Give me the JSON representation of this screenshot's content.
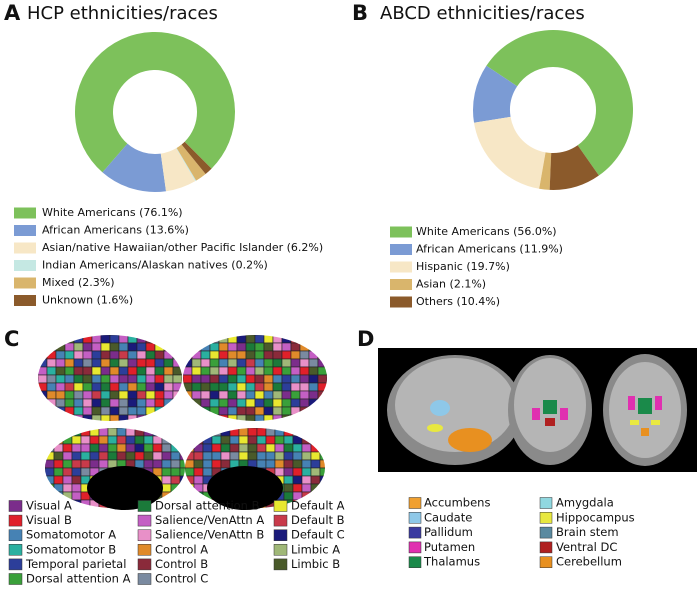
{
  "chart_data": [
    {
      "type": "pie",
      "panel": "A",
      "title": "HCP ethnicities/races",
      "categories": [
        "White Americans",
        "African Americans",
        "Asian/native Hawaiian/other Pacific Islander",
        "Indian Americans/Alaskan natives",
        "Mixed",
        "Unknown"
      ],
      "values": [
        76.1,
        13.6,
        6.2,
        0.2,
        2.3,
        1.6
      ],
      "value_labels": [
        "(76.1%)",
        "(13.6%)",
        "(6.2%)",
        "(0.2%)",
        "(2.3%)",
        "(1.6%)"
      ],
      "colors": [
        "#7dc15b",
        "#7b9bd4",
        "#f7e7c6",
        "#c5e8e3",
        "#d9b56c",
        "#8b5a2b"
      ]
    },
    {
      "type": "pie",
      "panel": "B",
      "title": "ABCD ethnicities/races",
      "categories": [
        "White Americans",
        "African Americans",
        "Hispanic",
        "Asian",
        "Others"
      ],
      "values": [
        56.0,
        11.9,
        19.7,
        2.1,
        10.4
      ],
      "value_labels": [
        "(56.0%)",
        "(11.9%)",
        "(19.7%)",
        "(2.1%)",
        "(10.4%)"
      ],
      "colors": [
        "#7dc15b",
        "#7b9bd4",
        "#f7e7c6",
        "#d9b56c",
        "#8b5a2b"
      ]
    }
  ],
  "panel_c": {
    "label": "C",
    "legend": [
      {
        "name": "Visual A",
        "color": "#7b2d8b"
      },
      {
        "name": "Visual B",
        "color": "#e0202a"
      },
      {
        "name": "Somatomotor A",
        "color": "#4682b4"
      },
      {
        "name": "Somatomotor B",
        "color": "#2ab0a0"
      },
      {
        "name": "Temporal parietal",
        "color": "#2c3e9a"
      },
      {
        "name": "Dorsal attention A",
        "color": "#3aa03a"
      },
      {
        "name": "Dorsal attention B",
        "color": "#1b7a3a"
      },
      {
        "name": "Salience/VenAttn A",
        "color": "#c45fc4"
      },
      {
        "name": "Salience/VenAttn B",
        "color": "#e890c8"
      },
      {
        "name": "Control A",
        "color": "#e08a2a"
      },
      {
        "name": "Control B",
        "color": "#8a2a3a"
      },
      {
        "name": "Control C",
        "color": "#7a8aa0"
      },
      {
        "name": "Default A",
        "color": "#e8e830"
      },
      {
        "name": "Default B",
        "color": "#c83a4a"
      },
      {
        "name": "Default C",
        "color": "#1a1a7a"
      },
      {
        "name": "Limbic A",
        "color": "#a0b878"
      },
      {
        "name": "Limbic B",
        "color": "#4a5a2a"
      }
    ]
  },
  "panel_d": {
    "label": "D",
    "legend": [
      {
        "name": "Accumbens",
        "color": "#f0a030"
      },
      {
        "name": "Caudate",
        "color": "#8ec8e8"
      },
      {
        "name": "Pallidum",
        "color": "#3a3aa0"
      },
      {
        "name": "Putamen",
        "color": "#e030b0"
      },
      {
        "name": "Thalamus",
        "color": "#1a8a4a"
      },
      {
        "name": "Amygdala",
        "color": "#90d8e0"
      },
      {
        "name": "Hippocampus",
        "color": "#e8e840"
      },
      {
        "name": "Brain stem",
        "color": "#5a8aa0"
      },
      {
        "name": "Ventral DC",
        "color": "#b02020"
      },
      {
        "name": "Cerebellum",
        "color": "#e89020"
      }
    ]
  }
}
